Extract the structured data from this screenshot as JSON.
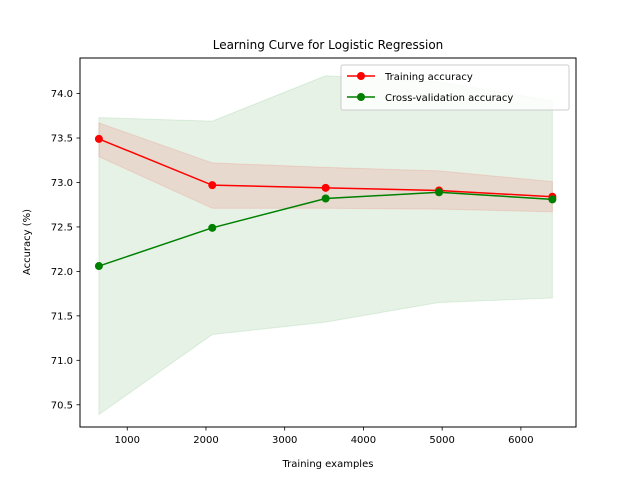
{
  "chart_data": {
    "type": "line",
    "title": "Learning Curve for Logistic Regression",
    "xlabel": "Training examples",
    "ylabel": "Accuracy (%)",
    "x": [
      640,
      2080,
      3520,
      4960,
      6400
    ],
    "xlim": [
      400,
      6700
    ],
    "ylim": [
      70.25,
      74.4
    ],
    "xticks": [
      1000,
      2000,
      3000,
      4000,
      5000,
      6000
    ],
    "yticks": [
      70.5,
      71.0,
      71.5,
      72.0,
      72.5,
      73.0,
      73.5,
      74.0
    ],
    "ytick_labels": [
      "70.5",
      "71.0",
      "71.5",
      "72.0",
      "72.5",
      "73.0",
      "73.5",
      "74.0"
    ],
    "grid": false,
    "legend_position": "top-right",
    "series": [
      {
        "name": "Training accuracy",
        "color": "#ff0000",
        "values": [
          73.49,
          72.97,
          72.94,
          72.91,
          72.84
        ],
        "band_lower": [
          73.29,
          72.71,
          72.71,
          72.7,
          72.67
        ],
        "band_upper": [
          73.67,
          73.22,
          73.17,
          73.13,
          73.01
        ]
      },
      {
        "name": "Cross-validation accuracy",
        "color": "#008000",
        "values": [
          72.06,
          72.49,
          72.82,
          72.89,
          72.81
        ],
        "band_lower": [
          70.39,
          71.29,
          71.43,
          71.65,
          71.7
        ],
        "band_upper": [
          73.73,
          73.69,
          74.2,
          74.13,
          73.92
        ]
      }
    ]
  }
}
